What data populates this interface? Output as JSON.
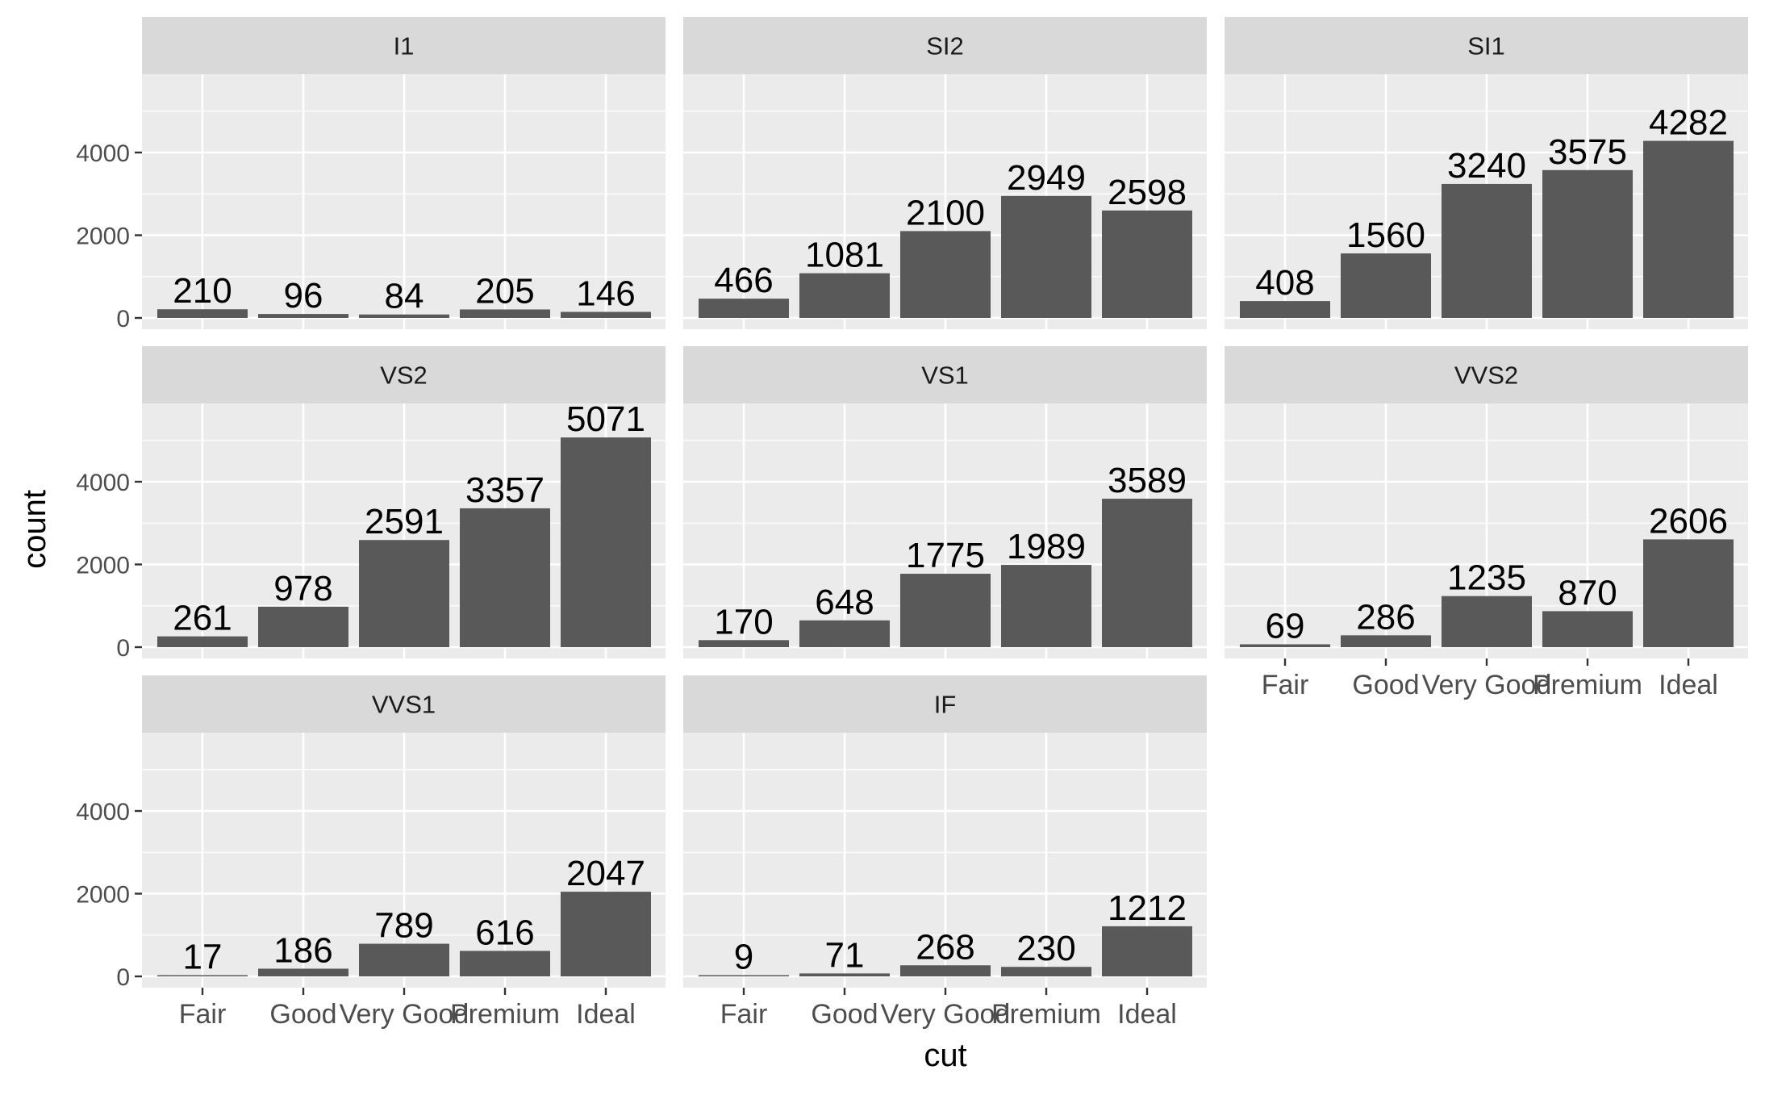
{
  "chart_data": {
    "type": "bar",
    "facet_by": "clarity",
    "xlabel": "cut",
    "ylabel": "count",
    "categories": [
      "Fair",
      "Good",
      "Very Good",
      "Premium",
      "Ideal"
    ],
    "y_ticks": [
      0,
      2000,
      4000
    ],
    "ylim": [
      -300,
      6300
    ],
    "facets": [
      {
        "name": "I1",
        "values": [
          210,
          96,
          84,
          205,
          146
        ]
      },
      {
        "name": "SI2",
        "values": [
          466,
          1081,
          2100,
          2949,
          2598
        ]
      },
      {
        "name": "SI1",
        "values": [
          408,
          1560,
          3240,
          3575,
          4282
        ]
      },
      {
        "name": "VS2",
        "values": [
          261,
          978,
          2591,
          3357,
          5071
        ]
      },
      {
        "name": "VS1",
        "values": [
          170,
          648,
          1775,
          1989,
          3589
        ]
      },
      {
        "name": "VVS2",
        "values": [
          69,
          286,
          1235,
          870,
          2606
        ]
      },
      {
        "name": "VVS1",
        "values": [
          17,
          186,
          789,
          616,
          2047
        ]
      },
      {
        "name": "IF",
        "values": [
          9,
          71,
          268,
          230,
          1212
        ]
      }
    ],
    "colors": {
      "bar": "#595959",
      "panel_bg": "#ebebeb",
      "strip_bg": "#d9d9d9",
      "grid": "#ffffff"
    }
  }
}
